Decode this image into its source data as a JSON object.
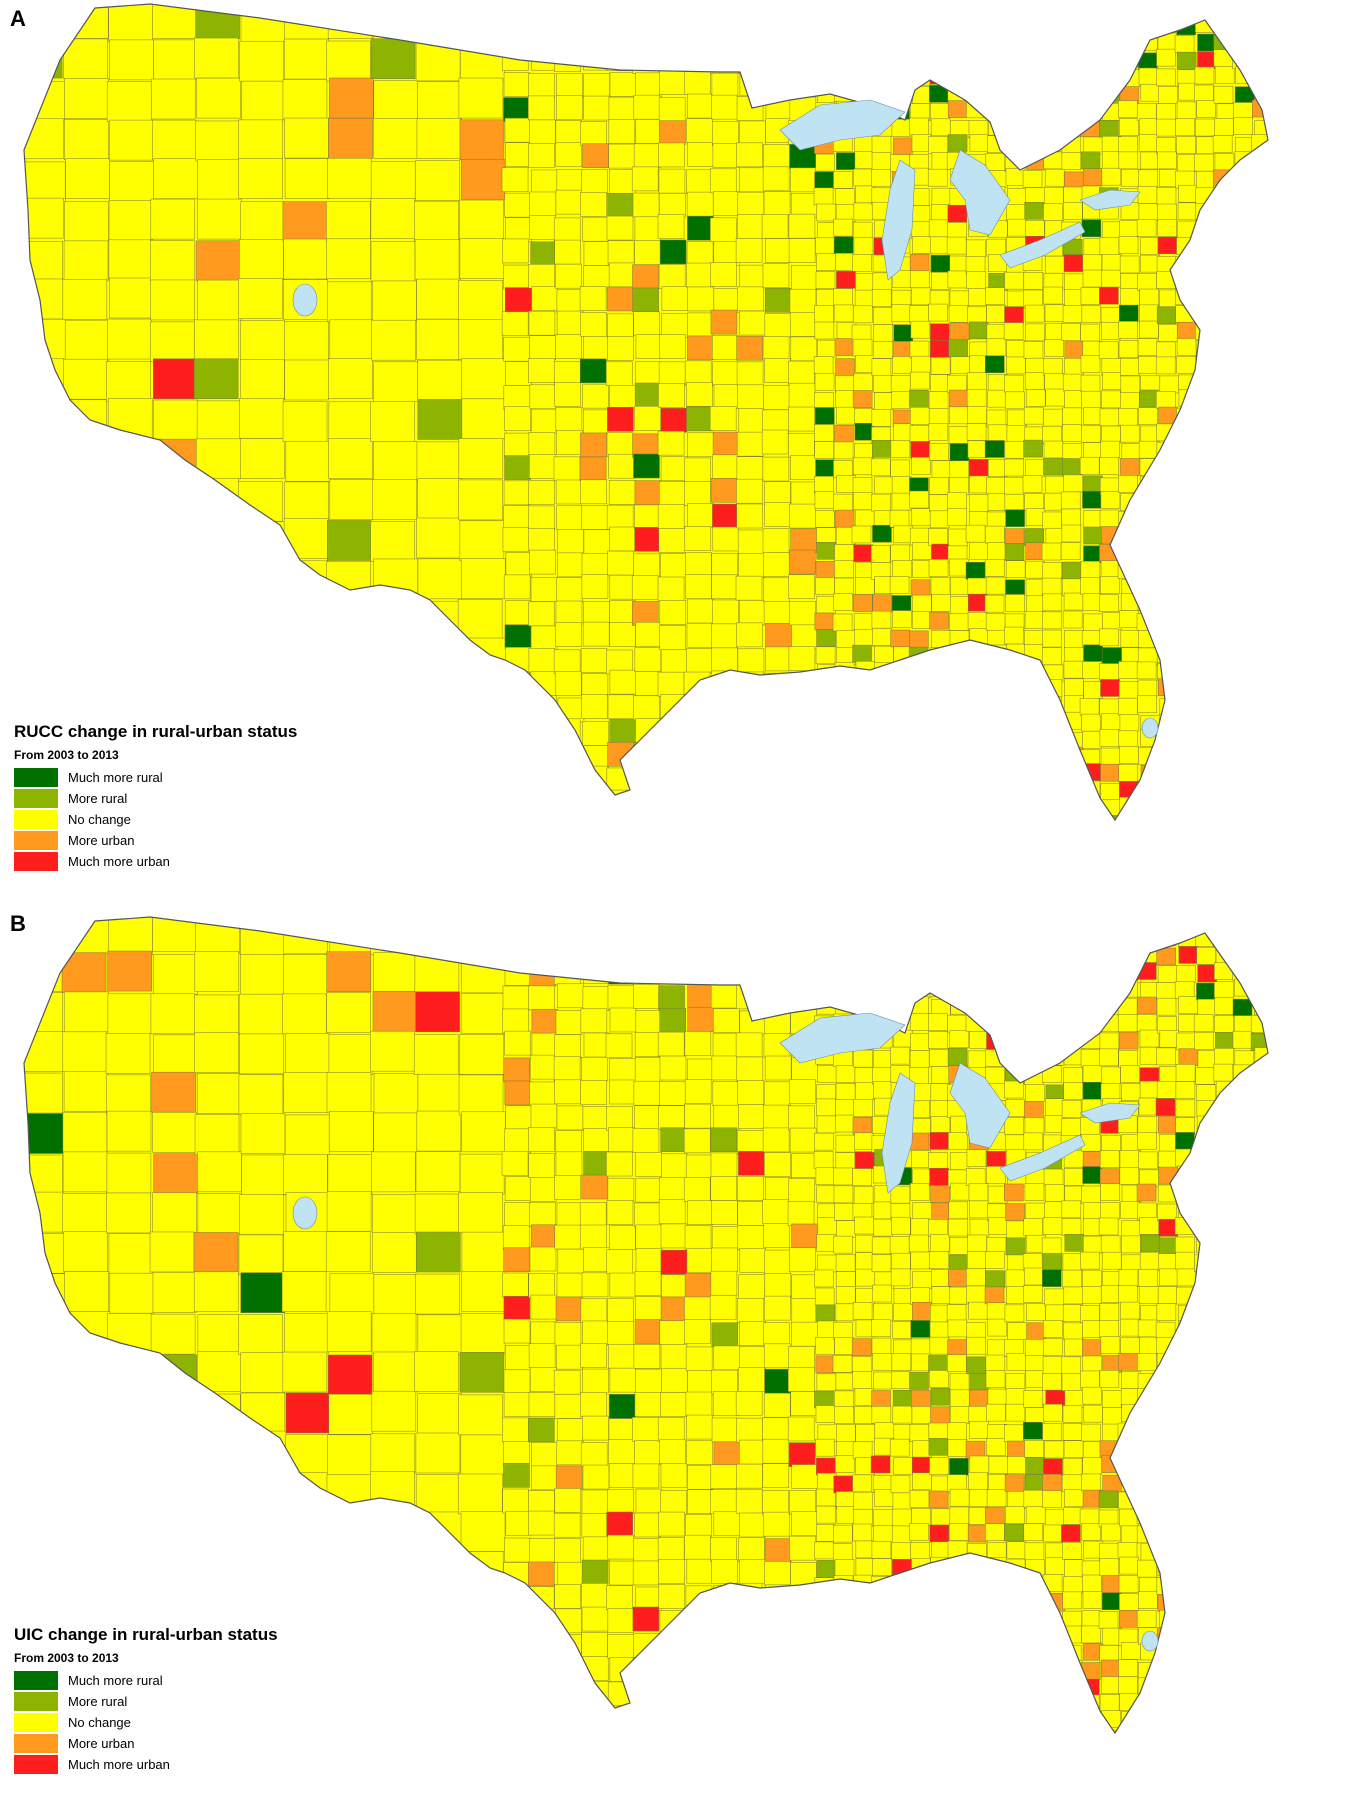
{
  "colors": {
    "land": "#ffff00",
    "water": "#bfe3f2",
    "border": "#7a7a40",
    "much_more_rural": "#007000",
    "more_rural": "#8cb400",
    "no_change": "#ffff00",
    "more_urban": "#ff9a1e",
    "much_more_urban": "#ff1e1e"
  },
  "panels": [
    {
      "letter": "A",
      "legend": {
        "title": "RUCC change in rural-urban status",
        "subtitle": "From 2003 to 2013",
        "items": [
          {
            "label": "Much more rural",
            "color": "#007000"
          },
          {
            "label": "More rural",
            "color": "#8cb400"
          },
          {
            "label": "No change",
            "color": "#ffff00"
          },
          {
            "label": "More urban",
            "color": "#ff9a1e"
          },
          {
            "label": "Much more urban",
            "color": "#ff1e1e"
          }
        ]
      }
    },
    {
      "letter": "B",
      "legend": {
        "title": "UIC change in rural-urban status",
        "subtitle": "From 2003 to 2013",
        "items": [
          {
            "label": "Much more rural",
            "color": "#007000"
          },
          {
            "label": "More rural",
            "color": "#8cb400"
          },
          {
            "label": "No change",
            "color": "#ffff00"
          },
          {
            "label": "More urban",
            "color": "#ff9a1e"
          },
          {
            "label": "Much more urban",
            "color": "#ff1e1e"
          }
        ]
      }
    }
  ]
}
